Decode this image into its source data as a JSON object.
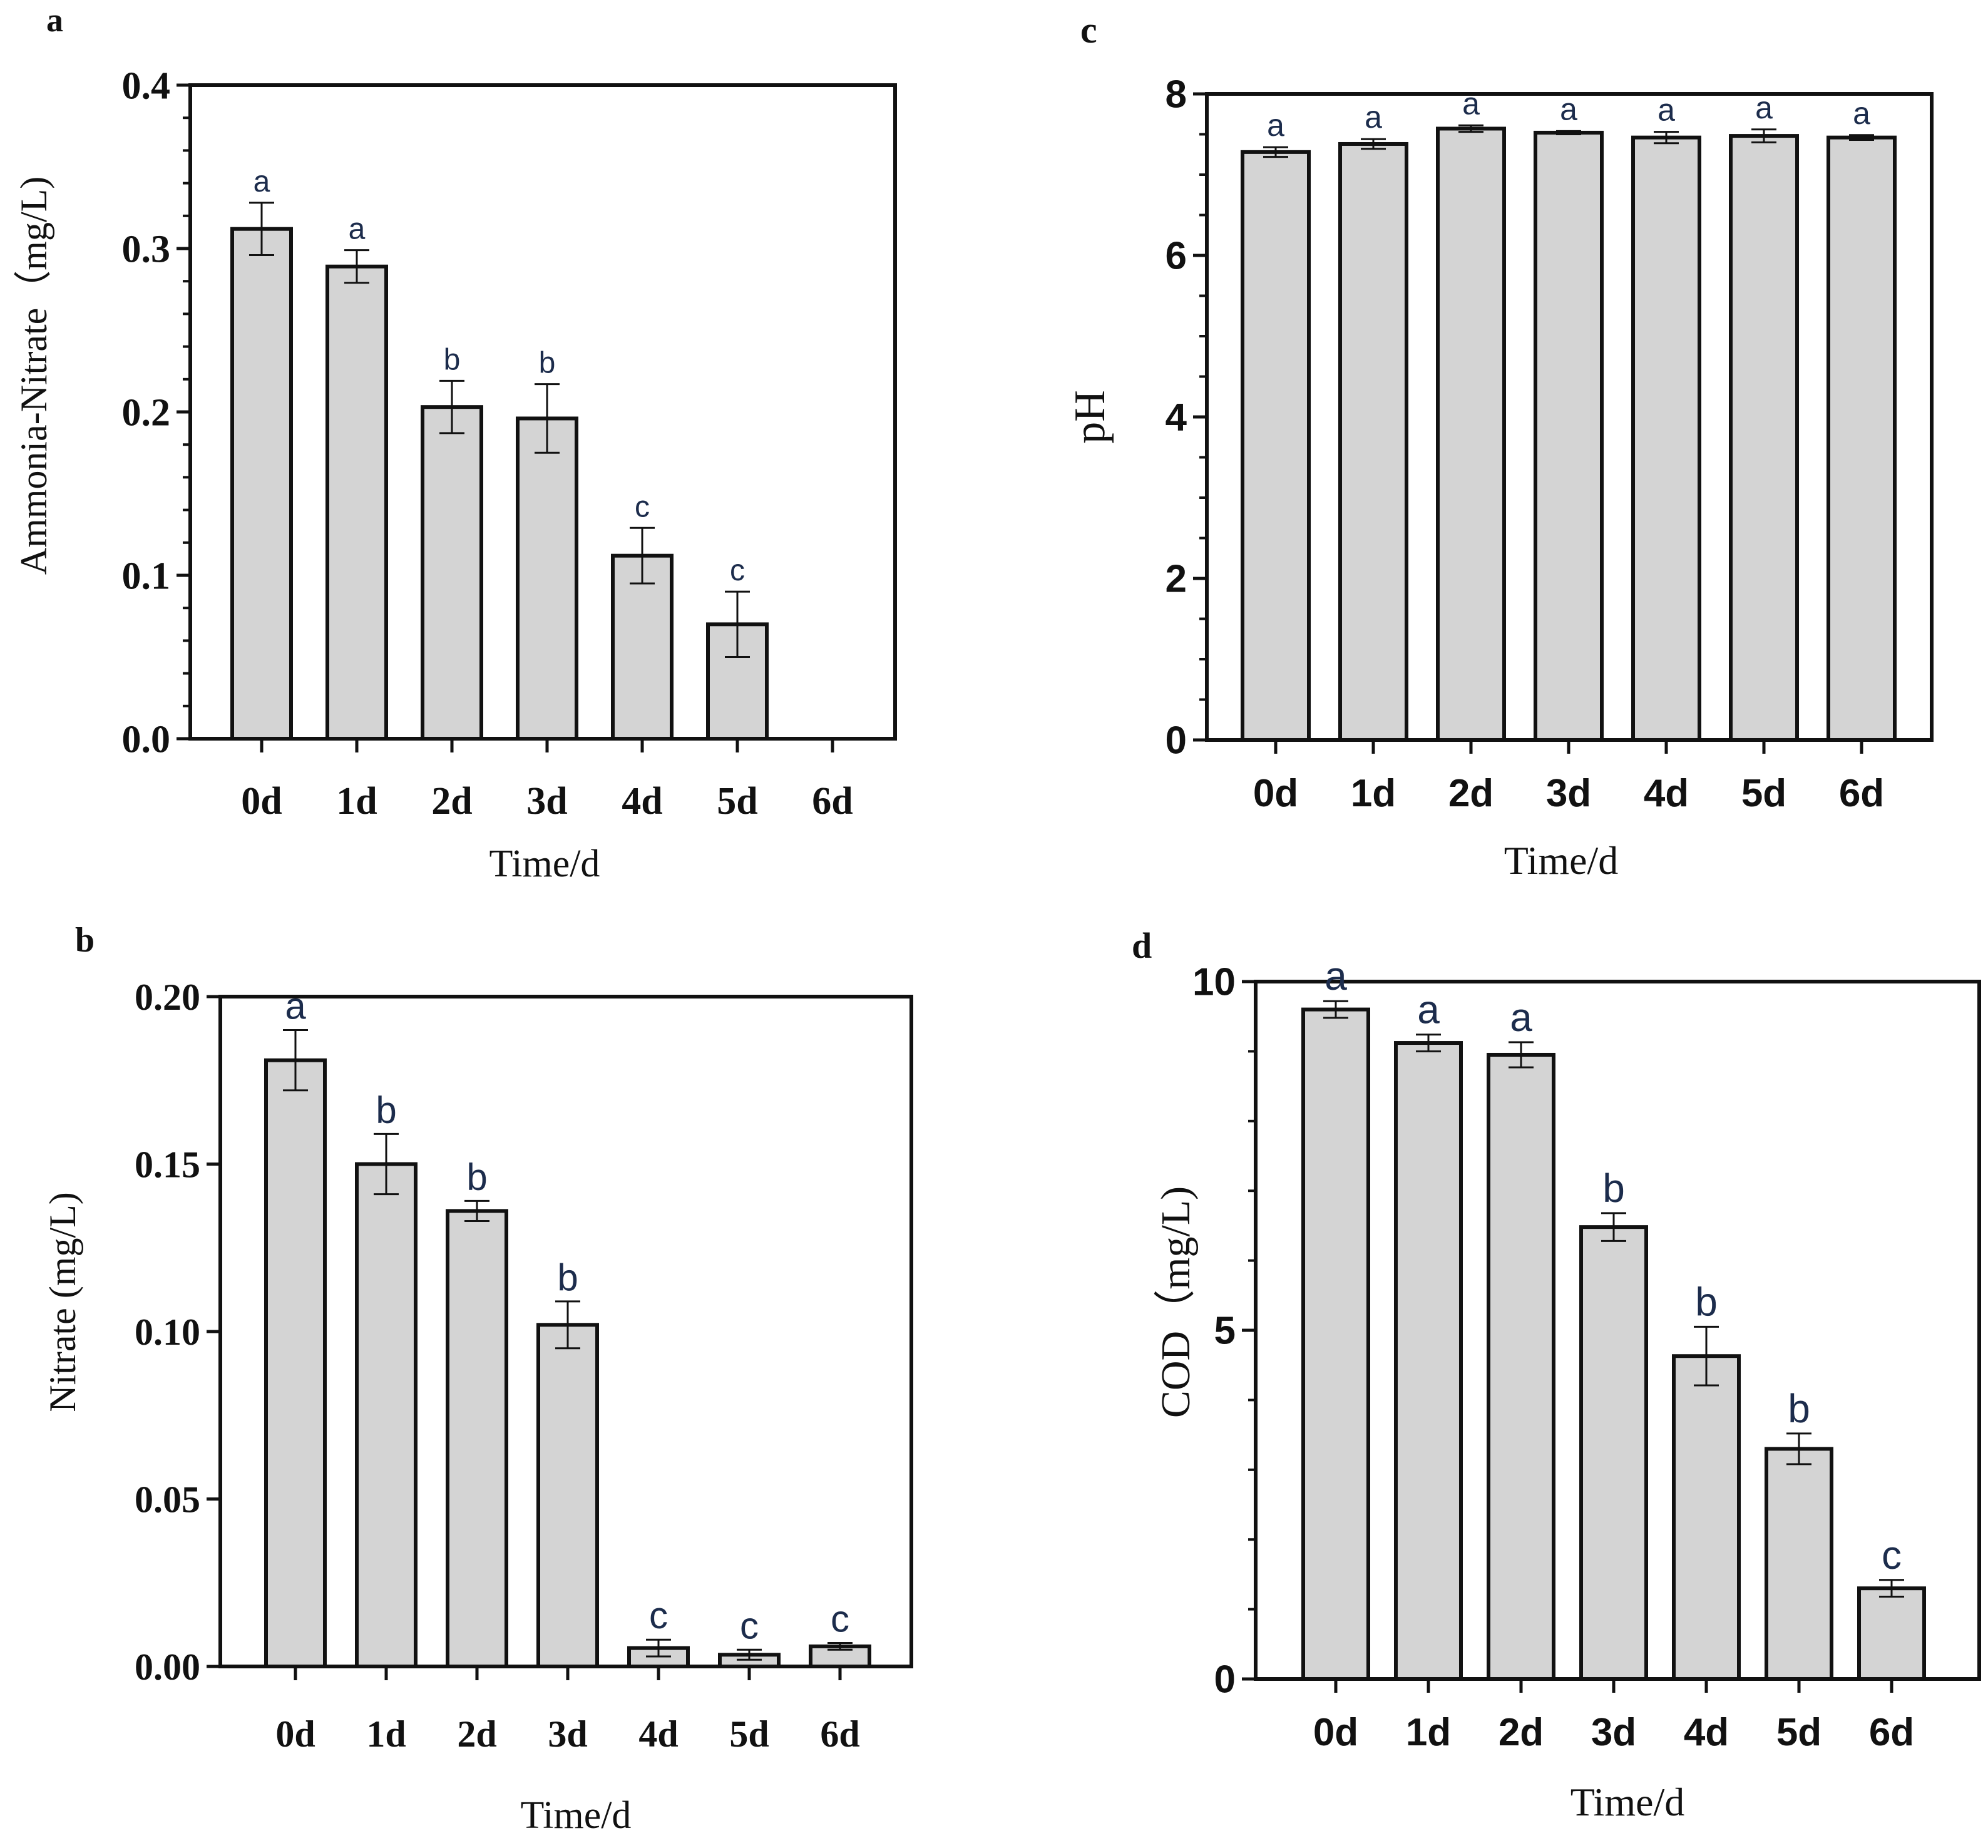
{
  "colors": {
    "bar_fill": "#d4d4d4",
    "bar_stroke": "#111111",
    "axis": "#111111",
    "sig_text": "#1c2c4c"
  },
  "chart_data": [
    {
      "panel": "a",
      "type": "bar",
      "title": "",
      "xlabel": "Time/d",
      "ylabel": "Ammonia-Nitrate（mg/L)",
      "categories": [
        "0d",
        "1d",
        "2d",
        "3d",
        "4d",
        "5d",
        "6d"
      ],
      "values": [
        0.312,
        0.289,
        0.203,
        0.196,
        0.112,
        0.07,
        null
      ],
      "errors": [
        0.016,
        0.01,
        0.016,
        0.021,
        0.017,
        0.02,
        null
      ],
      "significance": [
        "a",
        "a",
        "b",
        "b",
        "c",
        "c",
        ""
      ],
      "ylim": [
        0,
        0.4
      ],
      "yticks": [
        "0.0",
        "0.1",
        "0.2",
        "0.3",
        "0.4"
      ],
      "grid": false
    },
    {
      "panel": "b",
      "type": "bar",
      "title": "",
      "xlabel": "Time/d",
      "ylabel": "Nitrate (mg/L)",
      "categories": [
        "0d",
        "1d",
        "2d",
        "3d",
        "4d",
        "5d",
        "6d"
      ],
      "values": [
        0.181,
        0.15,
        0.136,
        0.102,
        0.0055,
        0.0035,
        0.006
      ],
      "errors": [
        0.009,
        0.009,
        0.003,
        0.007,
        0.0025,
        0.0015,
        0.001
      ],
      "significance": [
        "a",
        "b",
        "b",
        "b",
        "c",
        "c",
        "c"
      ],
      "ylim": [
        0,
        0.2
      ],
      "yticks": [
        "0.00",
        "0.05",
        "0.10",
        "0.15",
        "0.20"
      ],
      "grid": false
    },
    {
      "panel": "c",
      "type": "bar",
      "title": "",
      "xlabel": "Time/d",
      "ylabel": "pH",
      "categories": [
        "0d",
        "1d",
        "2d",
        "3d",
        "4d",
        "5d",
        "6d"
      ],
      "values": [
        7.28,
        7.38,
        7.57,
        7.52,
        7.46,
        7.48,
        7.46
      ],
      "errors": [
        0.06,
        0.06,
        0.04,
        0.02,
        0.07,
        0.08,
        0.03
      ],
      "significance": [
        "a",
        "a",
        "a",
        "a",
        "a",
        "a",
        "a"
      ],
      "ylim": [
        0,
        8
      ],
      "yticks": [
        "0",
        "2",
        "4",
        "6",
        "8"
      ],
      "grid": false
    },
    {
      "panel": "d",
      "type": "bar",
      "title": "",
      "xlabel": "Time/d",
      "ylabel": "COD（mg/L)",
      "categories": [
        "0d",
        "1d",
        "2d",
        "3d",
        "4d",
        "5d",
        "6d"
      ],
      "values": [
        9.6,
        9.12,
        8.95,
        6.48,
        4.63,
        3.3,
        1.3
      ],
      "errors": [
        0.12,
        0.12,
        0.18,
        0.2,
        0.42,
        0.22,
        0.12
      ],
      "significance": [
        "a",
        "a",
        "a",
        "b",
        "b",
        "b",
        "c"
      ],
      "ylim": [
        0,
        10
      ],
      "yticks": [
        "0",
        "5",
        "10"
      ],
      "grid": false
    }
  ]
}
